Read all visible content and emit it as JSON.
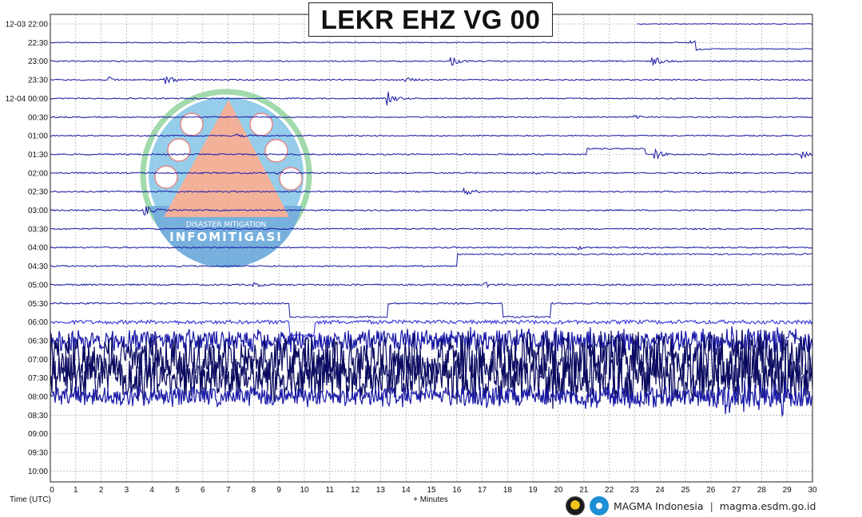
{
  "title": "LEKR EHZ VG 00",
  "footer": {
    "brand": "MAGMA Indonesia",
    "separator": "|",
    "url": "magma.esdm.go.id"
  },
  "watermark": {
    "line1": "DISASTER MITIGATION",
    "line2": "INFOMITIGASI"
  },
  "colors": {
    "trace": "#1a1aa8",
    "trace_dark": "#0a0a60",
    "trace_bright": "#2a2ae0",
    "grid": "#aaaaaa",
    "baseline": "#1a1a7a"
  },
  "chart_data": {
    "type": "line",
    "title": "LEKR EHZ VG 00",
    "xlabel": "+ Minutes",
    "ylabel": "Time (UTC)",
    "xlim": [
      0,
      30
    ],
    "x_ticks": [
      1,
      2,
      3,
      4,
      5,
      6,
      7,
      8,
      9,
      10,
      11,
      12,
      13,
      14,
      15,
      16,
      17,
      18,
      19,
      20,
      21,
      22,
      23,
      24,
      25,
      26,
      27,
      28,
      29,
      30
    ],
    "grid": "dashed",
    "rows": [
      {
        "label": "12-03 22:00",
        "start": 23.1,
        "end": 30,
        "amp": 0.5,
        "steps": [],
        "events": []
      },
      {
        "label": "22:30",
        "start": 0,
        "end": 30,
        "amp": 0.6,
        "steps": [
          {
            "t": 25.4,
            "dy": 8
          }
        ],
        "events": [
          {
            "t": 25.2,
            "a": 3
          }
        ]
      },
      {
        "label": "23:00",
        "start": 0,
        "end": 30,
        "amp": 0.8,
        "steps": [],
        "events": [
          {
            "t": 15.8,
            "a": 6
          },
          {
            "t": 23.7,
            "a": 8
          }
        ]
      },
      {
        "label": "23:30",
        "start": 0,
        "end": 30,
        "amp": 0.8,
        "steps": [],
        "events": [
          {
            "t": 2.3,
            "a": 3
          },
          {
            "t": 4.5,
            "a": 7
          },
          {
            "t": 14.0,
            "a": 3
          }
        ]
      },
      {
        "label": "12-04 00:00",
        "start": 0,
        "end": 30,
        "amp": 0.8,
        "steps": [],
        "events": [
          {
            "t": 13.3,
            "a": 8
          }
        ]
      },
      {
        "label": "00:30",
        "start": 0,
        "end": 30,
        "amp": 0.8,
        "steps": [],
        "events": [
          {
            "t": 23.0,
            "a": 2
          }
        ]
      },
      {
        "label": "01:00",
        "start": 0,
        "end": 30,
        "amp": 0.8,
        "steps": [],
        "events": [
          {
            "t": 7.3,
            "a": 2
          }
        ]
      },
      {
        "label": "01:30",
        "start": 0,
        "end": 30,
        "amp": 0.9,
        "steps": [
          {
            "t": 21.1,
            "dy": -7
          },
          {
            "t": 23.4,
            "dy": 7
          }
        ],
        "events": [
          {
            "t": 23.8,
            "a": 7
          },
          {
            "t": 29.6,
            "a": 5
          }
        ]
      },
      {
        "label": "02:00",
        "start": 0,
        "end": 30,
        "amp": 0.9,
        "steps": [],
        "events": [
          {
            "t": 9.0,
            "a": 2
          },
          {
            "t": 19.0,
            "a": 2
          }
        ]
      },
      {
        "label": "02:30",
        "start": 0,
        "end": 30,
        "amp": 0.9,
        "steps": [],
        "events": [
          {
            "t": 16.3,
            "a": 5
          }
        ]
      },
      {
        "label": "03:00",
        "start": 0,
        "end": 30,
        "amp": 0.9,
        "steps": [],
        "events": [
          {
            "t": 3.7,
            "a": 7
          }
        ]
      },
      {
        "label": "03:30",
        "start": 0,
        "end": 30,
        "amp": 0.9,
        "steps": [],
        "events": []
      },
      {
        "label": "04:00",
        "start": 0,
        "end": 30,
        "amp": 0.9,
        "steps": [],
        "events": [
          {
            "t": 20.8,
            "a": 2
          }
        ]
      },
      {
        "label": "04:30",
        "start": 0,
        "end": 30,
        "amp": 0.9,
        "steps": [
          {
            "t": 16.0,
            "dy": -15
          }
        ],
        "events": []
      },
      {
        "label": "05:00",
        "start": 0,
        "end": 30,
        "amp": 1.0,
        "steps": [],
        "events": [
          {
            "t": 8.0,
            "a": 3
          },
          {
            "t": 17.1,
            "a": 3
          }
        ]
      },
      {
        "label": "05:30",
        "start": 0,
        "end": 30,
        "amp": 1.0,
        "steps": [
          {
            "t": 9.4,
            "dy": 17
          },
          {
            "t": 13.3,
            "dy": -17
          },
          {
            "t": 17.8,
            "dy": 17
          },
          {
            "t": 19.7,
            "dy": -17
          }
        ],
        "events": []
      },
      {
        "label": "06:00",
        "start": 0,
        "end": 30,
        "amp": 2.5,
        "steps": [
          {
            "t": 9.4,
            "dy": 17
          },
          {
            "t": 10.4,
            "dy": -17
          }
        ],
        "events": []
      },
      {
        "label": "06:30",
        "start": 0,
        "end": 30,
        "amp": 16,
        "steps": [],
        "events": []
      },
      {
        "label": "07:00",
        "start": 0,
        "end": 30,
        "amp": 34,
        "steps": [],
        "events": []
      },
      {
        "label": "07:30",
        "start": 0,
        "end": 30,
        "amp": 34,
        "steps": [],
        "events": []
      },
      {
        "label": "08:00",
        "start": 0,
        "end": 30,
        "amp": 14,
        "steps": [],
        "events": []
      },
      {
        "label": "08:30",
        "start": 0,
        "end": 0,
        "amp": 0,
        "steps": [],
        "events": []
      },
      {
        "label": "09:00",
        "start": 0,
        "end": 0,
        "amp": 0,
        "steps": [],
        "events": []
      },
      {
        "label": "09:30",
        "start": 0,
        "end": 0,
        "amp": 0,
        "steps": [],
        "events": []
      },
      {
        "label": "10:00",
        "start": 0,
        "end": 0,
        "amp": 0,
        "steps": [],
        "events": []
      }
    ]
  }
}
